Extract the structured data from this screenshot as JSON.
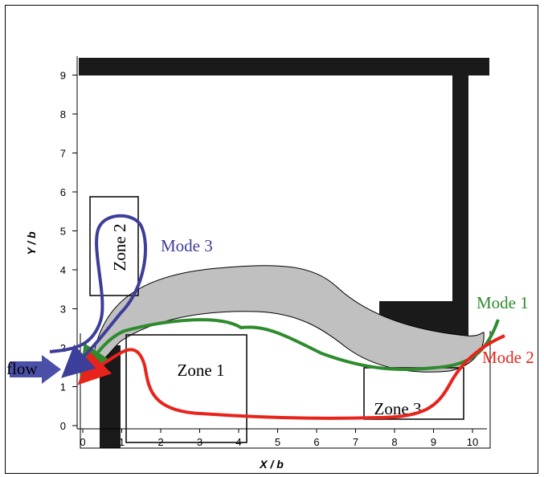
{
  "diagram": {
    "x_axis": {
      "label": "X / b",
      "ticks": [
        "0",
        "1",
        "2",
        "3",
        "4",
        "5",
        "6",
        "7",
        "8",
        "9",
        "10"
      ]
    },
    "y_axis": {
      "label": "Y / b",
      "ticks": [
        "0",
        "1",
        "2",
        "3",
        "4",
        "5",
        "6",
        "7",
        "8",
        "9"
      ]
    },
    "zones": [
      {
        "label": "Zone 1"
      },
      {
        "label": "Zone 2"
      },
      {
        "label": "Zone 3"
      }
    ],
    "modes": [
      {
        "label": "Mode 1",
        "color": "#2e8b2e"
      },
      {
        "label": "Mode 2",
        "color": "#e8231b"
      },
      {
        "label": "Mode  3",
        "color": "#3d3d9a"
      }
    ],
    "inlet_label": "flow",
    "colors": {
      "wall": "#1a1a1a",
      "jet": "#c0c0c0",
      "inlet_arrow": "#4a4fa8"
    }
  }
}
